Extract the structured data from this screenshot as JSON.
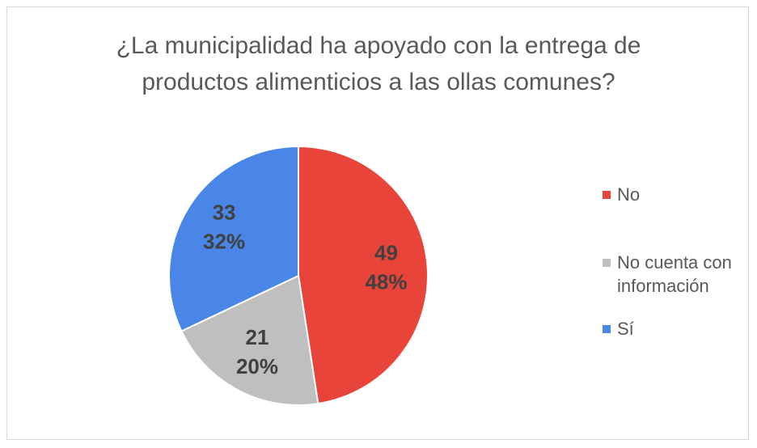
{
  "chart_data": {
    "type": "pie",
    "title": "¿La municipalidad ha apoyado con la entrega de productos alimenticios a las ollas comunes?",
    "categories": [
      "No",
      "No cuenta con información",
      "Sí"
    ],
    "values": [
      49,
      21,
      33
    ],
    "percent_labels": [
      "48%",
      "20%",
      "32%"
    ],
    "colors": [
      "#e8443a",
      "#bfbfbf",
      "#4a86e8"
    ],
    "legend": "right"
  }
}
